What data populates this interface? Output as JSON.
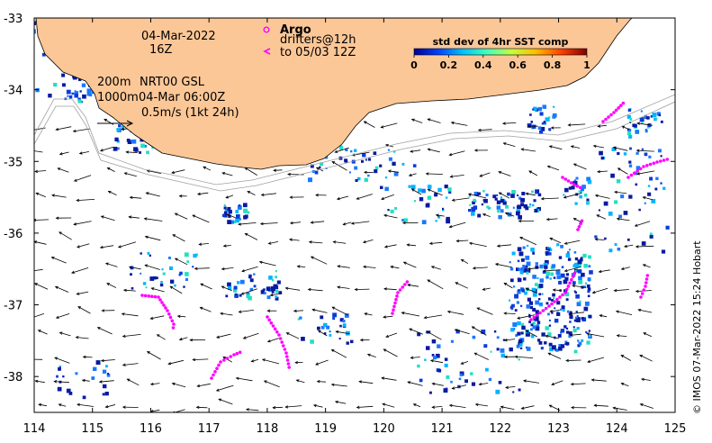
{
  "header": {
    "date_line": "04-Mar-2022",
    "time_line": "16Z",
    "isobath_200": "200m",
    "isobath_1000": "1000m",
    "current_product": "NRT00 GSL",
    "current_time": "04-Mar 06:00Z",
    "scale_label": "0.5m/s (1kt 24h)"
  },
  "argo_legend": {
    "title": "Argo",
    "marker_symbol": "o",
    "drifters_line": "drifters@12h",
    "drifter_symbol": "<",
    "drifters_to": "to 05/03 12Z",
    "marker_color": "#ff00ff"
  },
  "colorbar": {
    "title": "std dev of 4hr SST comp",
    "ticks": [
      "0",
      "0.2",
      "0.4",
      "0.6",
      "0.8",
      "1"
    ],
    "stops": [
      "#00008f",
      "#0040ff",
      "#00c0ff",
      "#40ffbf",
      "#c0ff40",
      "#ffbf00",
      "#ff4000",
      "#800000"
    ]
  },
  "credit": "© IMOS 07-Mar-2022 15:24 Hobart",
  "axes": {
    "x_ticks": [
      "114",
      "115",
      "116",
      "117",
      "118",
      "119",
      "120",
      "121",
      "122",
      "123",
      "124",
      "125"
    ],
    "y_ticks": [
      "-33",
      "-34",
      "-35",
      "-36",
      "-37",
      "-38"
    ],
    "xlim": [
      114,
      125
    ],
    "ylim": [
      -38.5,
      -33
    ]
  },
  "colors": {
    "land": "#fcc797",
    "isobath": "#a0a0a0",
    "arrow": "#000000",
    "drifter": "#ff00ff"
  }
}
